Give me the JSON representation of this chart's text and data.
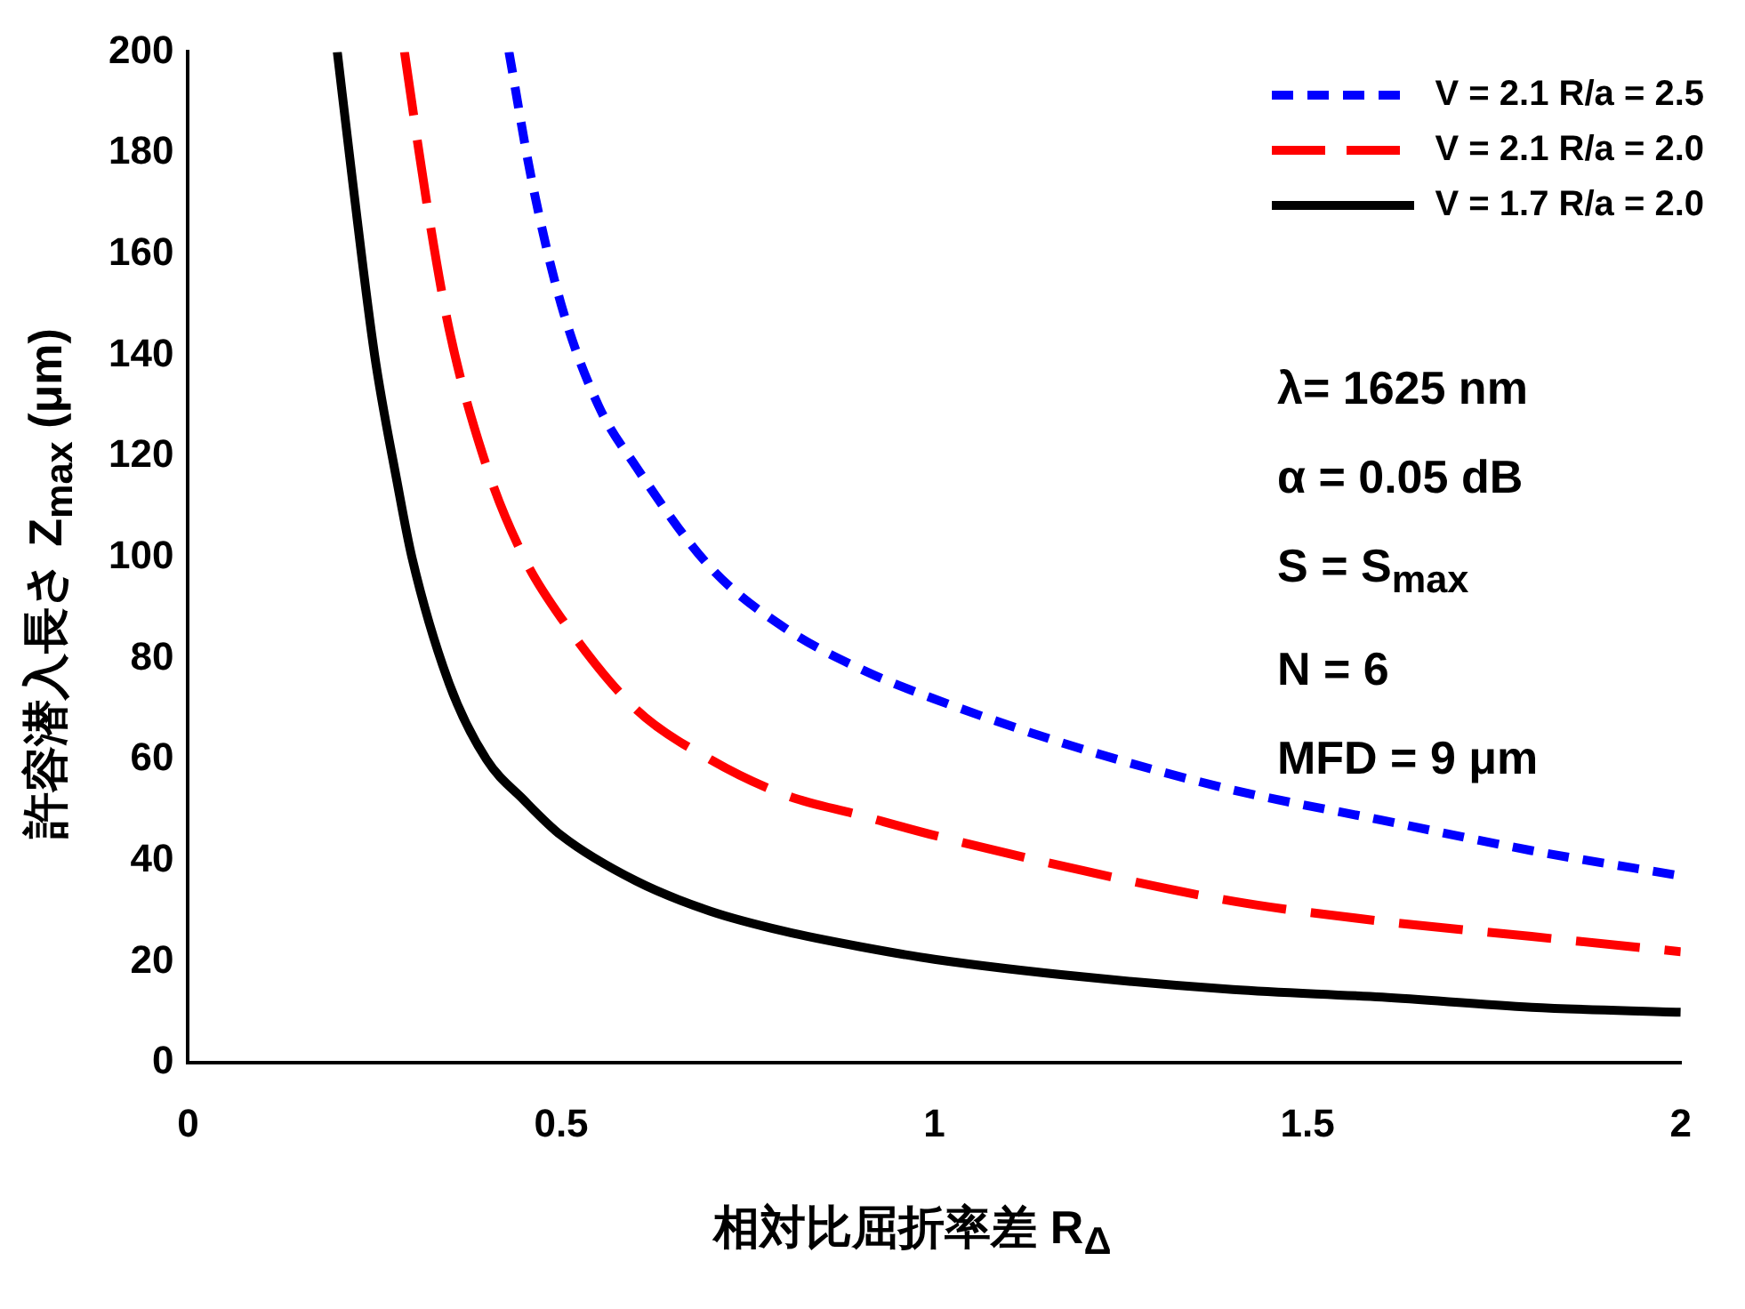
{
  "chart_data": {
    "type": "line",
    "xlabel": "相対比屈折率差 R$_{Δ}$",
    "ylabel": "許容潜入長さ Z$_{max}$ (μm)",
    "xlim": [
      0,
      2
    ],
    "xticks": [
      0,
      0.5,
      1,
      1.5,
      2
    ],
    "ylim": [
      0,
      200
    ],
    "yticks": [
      0,
      20,
      40,
      60,
      80,
      100,
      120,
      140,
      160,
      180,
      200
    ],
    "grid": false,
    "legend": "top right",
    "marker": "none",
    "series": [
      {
        "name": "V = 2.1 R/a = 2.5",
        "color": "#0000ff",
        "line_style": "dashed",
        "x": [
          0.43,
          0.46,
          0.5,
          0.55,
          0.6,
          0.7,
          0.8,
          0.9,
          1.0,
          1.2,
          1.4,
          1.6,
          1.8,
          2.0
        ],
        "values": [
          200,
          175,
          150,
          130,
          118,
          98,
          86,
          78,
          72,
          62,
          54,
          48,
          42,
          37
        ]
      },
      {
        "name": "V = 2.1 R/a = 2.0",
        "color": "#ff0000",
        "line_style": "dashed",
        "x": [
          0.29,
          0.32,
          0.35,
          0.4,
          0.45,
          0.5,
          0.6,
          0.7,
          0.8,
          0.9,
          1.0,
          1.2,
          1.4,
          1.6,
          1.8,
          2.0
        ],
        "values": [
          200,
          170,
          145,
          118,
          100,
          88,
          70,
          60,
          53,
          49,
          45,
          38,
          32,
          28,
          25,
          22
        ]
      },
      {
        "name": "V = 1.7 R/a = 2.0",
        "color": "#000000",
        "line_style": "solid",
        "x": [
          0.2,
          0.22,
          0.25,
          0.28,
          0.3,
          0.35,
          0.4,
          0.45,
          0.5,
          0.6,
          0.7,
          0.8,
          0.9,
          1.0,
          1.2,
          1.4,
          1.6,
          1.8,
          2.0
        ],
        "values": [
          200,
          175,
          140,
          115,
          100,
          75,
          60,
          52,
          45,
          36,
          30,
          26,
          23,
          20.5,
          17,
          14.5,
          13,
          11,
          10
        ]
      }
    ],
    "annotations": [
      "λ= 1625 nm",
      "α = 0.05 dB",
      "S = S$_{max}$",
      "N = 6",
      "MFD = 9 μm"
    ]
  }
}
